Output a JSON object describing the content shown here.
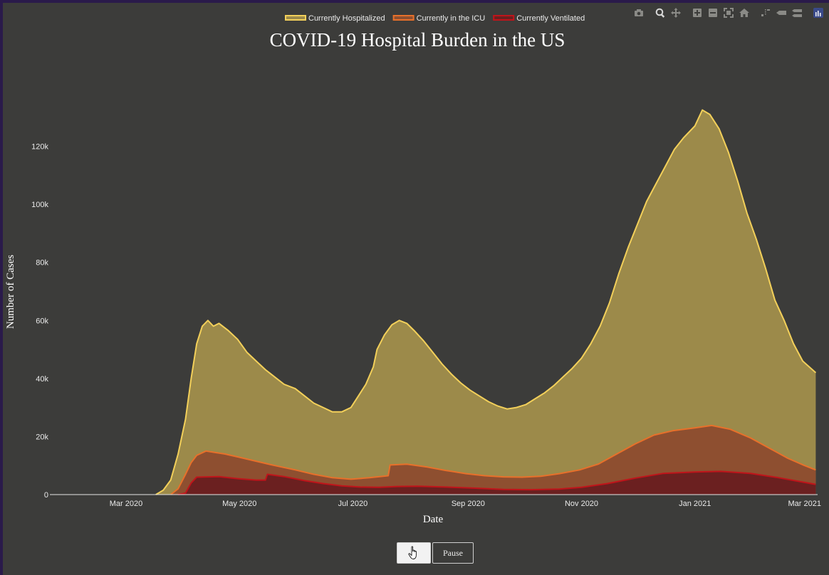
{
  "modebar": {
    "icons": [
      "camera-icon",
      "zoom-icon",
      "pan-icon",
      "zoom-in-icon",
      "zoom-out-icon",
      "autoscale-icon",
      "reset-axes-icon",
      "spike-lines-icon",
      "hover-closest-icon",
      "hover-compare-icon",
      "plotly-logo-icon"
    ]
  },
  "controls": {
    "play_label": "",
    "pause_label": "Pause"
  },
  "colors": {
    "background": "#3c3c3a",
    "hospitalized_fill": "#9c8a4a",
    "hospitalized_line": "#f3d05a",
    "icu_fill": "#8e4f30",
    "icu_line": "#e8702a",
    "ventilated_fill": "#6b2020",
    "ventilated_line": "#c0141a"
  },
  "chart_data": {
    "type": "area",
    "title": "COVID-19 Hospital Burden in the US",
    "xlabel": "Date",
    "ylabel": "Number of Cases",
    "xlim": [
      "2020-01-20",
      "2021-03-08"
    ],
    "ylim": [
      0,
      140000
    ],
    "x_ticks": [
      {
        "date": "2020-03-01",
        "label": "Mar 2020"
      },
      {
        "date": "2020-05-01",
        "label": "May 2020"
      },
      {
        "date": "2020-07-01",
        "label": "Jul 2020"
      },
      {
        "date": "2020-09-01",
        "label": "Sep 2020"
      },
      {
        "date": "2020-11-01",
        "label": "Nov 2020"
      },
      {
        "date": "2021-01-01",
        "label": "Jan 2021"
      },
      {
        "date": "2021-03-01",
        "label": "Mar 2021"
      }
    ],
    "y_ticks": [
      {
        "value": 0,
        "label": "0"
      },
      {
        "value": 20000,
        "label": "20k"
      },
      {
        "value": 40000,
        "label": "40k"
      },
      {
        "value": 60000,
        "label": "60k"
      },
      {
        "value": 80000,
        "label": "80k"
      },
      {
        "value": 100000,
        "label": "100k"
      },
      {
        "value": 120000,
        "label": "120k"
      }
    ],
    "legend_position": "top",
    "grid": false,
    "series": [
      {
        "name": "Currently Hospitalized",
        "points": [
          [
            "2020-03-17",
            0
          ],
          [
            "2020-03-21",
            1500
          ],
          [
            "2020-03-25",
            5000
          ],
          [
            "2020-03-29",
            14000
          ],
          [
            "2020-04-02",
            26000
          ],
          [
            "2020-04-05",
            40000
          ],
          [
            "2020-04-08",
            52000
          ],
          [
            "2020-04-11",
            58000
          ],
          [
            "2020-04-14",
            60000
          ],
          [
            "2020-04-17",
            58000
          ],
          [
            "2020-04-20",
            59000
          ],
          [
            "2020-04-25",
            56500
          ],
          [
            "2020-04-30",
            53500
          ],
          [
            "2020-05-05",
            49000
          ],
          [
            "2020-05-10",
            46000
          ],
          [
            "2020-05-15",
            43000
          ],
          [
            "2020-05-20",
            40500
          ],
          [
            "2020-05-25",
            38000
          ],
          [
            "2020-05-31",
            36500
          ],
          [
            "2020-06-05",
            34000
          ],
          [
            "2020-06-10",
            31500
          ],
          [
            "2020-06-15",
            30000
          ],
          [
            "2020-06-20",
            28500
          ],
          [
            "2020-06-25",
            28500
          ],
          [
            "2020-06-30",
            30000
          ],
          [
            "2020-07-04",
            34000
          ],
          [
            "2020-07-08",
            38000
          ],
          [
            "2020-07-12",
            44000
          ],
          [
            "2020-07-14",
            50000
          ],
          [
            "2020-07-18",
            55000
          ],
          [
            "2020-07-22",
            58500
          ],
          [
            "2020-07-26",
            60000
          ],
          [
            "2020-07-30",
            59000
          ],
          [
            "2020-08-03",
            56500
          ],
          [
            "2020-08-08",
            53000
          ],
          [
            "2020-08-13",
            49000
          ],
          [
            "2020-08-18",
            45000
          ],
          [
            "2020-08-23",
            41500
          ],
          [
            "2020-08-28",
            38500
          ],
          [
            "2020-09-02",
            36000
          ],
          [
            "2020-09-07",
            34000
          ],
          [
            "2020-09-12",
            32000
          ],
          [
            "2020-09-17",
            30500
          ],
          [
            "2020-09-22",
            29500
          ],
          [
            "2020-09-27",
            30000
          ],
          [
            "2020-10-02",
            31000
          ],
          [
            "2020-10-07",
            33000
          ],
          [
            "2020-10-12",
            35000
          ],
          [
            "2020-10-17",
            37500
          ],
          [
            "2020-10-22",
            40500
          ],
          [
            "2020-10-27",
            43500
          ],
          [
            "2020-11-01",
            47000
          ],
          [
            "2020-11-06",
            52000
          ],
          [
            "2020-11-11",
            58000
          ],
          [
            "2020-11-16",
            66000
          ],
          [
            "2020-11-21",
            76000
          ],
          [
            "2020-11-26",
            85000
          ],
          [
            "2020-12-01",
            93000
          ],
          [
            "2020-12-06",
            101000
          ],
          [
            "2020-12-11",
            107000
          ],
          [
            "2020-12-16",
            113000
          ],
          [
            "2020-12-21",
            119000
          ],
          [
            "2020-12-26",
            123000
          ],
          [
            "2021-01-01",
            127000
          ],
          [
            "2021-01-05",
            132500
          ],
          [
            "2021-01-09",
            131000
          ],
          [
            "2021-01-14",
            126000
          ],
          [
            "2021-01-19",
            118000
          ],
          [
            "2021-01-24",
            108000
          ],
          [
            "2021-01-29",
            97000
          ],
          [
            "2021-02-03",
            88000
          ],
          [
            "2021-02-08",
            78000
          ],
          [
            "2021-02-13",
            67000
          ],
          [
            "2021-02-18",
            60000
          ],
          [
            "2021-02-23",
            52000
          ],
          [
            "2021-02-28",
            46000
          ],
          [
            "2021-03-07",
            42000
          ]
        ]
      },
      {
        "name": "Currently in the ICU",
        "points": [
          [
            "2020-03-25",
            0
          ],
          [
            "2020-03-29",
            2000
          ],
          [
            "2020-04-02",
            7000
          ],
          [
            "2020-04-05",
            11000
          ],
          [
            "2020-04-08",
            13500
          ],
          [
            "2020-04-13",
            15000
          ],
          [
            "2020-04-18",
            14500
          ],
          [
            "2020-04-23",
            14000
          ],
          [
            "2020-04-30",
            13000
          ],
          [
            "2020-05-10",
            11500
          ],
          [
            "2020-05-20",
            10000
          ],
          [
            "2020-05-31",
            8500
          ],
          [
            "2020-06-10",
            7000
          ],
          [
            "2020-06-20",
            5800
          ],
          [
            "2020-06-30",
            5300
          ],
          [
            "2020-07-10",
            5800
          ],
          [
            "2020-07-20",
            6500
          ],
          [
            "2020-07-21",
            10200
          ],
          [
            "2020-07-30",
            10500
          ],
          [
            "2020-08-10",
            9500
          ],
          [
            "2020-08-20",
            8300
          ],
          [
            "2020-08-31",
            7200
          ],
          [
            "2020-09-10",
            6500
          ],
          [
            "2020-09-20",
            6100
          ],
          [
            "2020-09-30",
            6000
          ],
          [
            "2020-10-10",
            6300
          ],
          [
            "2020-10-20",
            7200
          ],
          [
            "2020-10-31",
            8500
          ],
          [
            "2020-11-10",
            10500
          ],
          [
            "2020-11-20",
            14000
          ],
          [
            "2020-11-30",
            17500
          ],
          [
            "2020-12-10",
            20500
          ],
          [
            "2020-12-20",
            22000
          ],
          [
            "2021-01-01",
            23000
          ],
          [
            "2021-01-10",
            23800
          ],
          [
            "2021-01-20",
            22500
          ],
          [
            "2021-01-31",
            19500
          ],
          [
            "2021-02-10",
            16000
          ],
          [
            "2021-02-20",
            12500
          ],
          [
            "2021-03-01",
            10000
          ],
          [
            "2021-03-07",
            8500
          ]
        ]
      },
      {
        "name": "Currently Ventilated",
        "points": [
          [
            "2020-03-29",
            0
          ],
          [
            "2020-04-02",
            500
          ],
          [
            "2020-04-05",
            4000
          ],
          [
            "2020-04-08",
            6000
          ],
          [
            "2020-04-20",
            6200
          ],
          [
            "2020-04-30",
            5500
          ],
          [
            "2020-05-10",
            5000
          ],
          [
            "2020-05-15",
            5000
          ],
          [
            "2020-05-16",
            7000
          ],
          [
            "2020-05-25",
            6200
          ],
          [
            "2020-06-05",
            4800
          ],
          [
            "2020-06-15",
            3800
          ],
          [
            "2020-06-25",
            3000
          ],
          [
            "2020-07-05",
            2600
          ],
          [
            "2020-07-15",
            2500
          ],
          [
            "2020-07-25",
            2800
          ],
          [
            "2020-08-05",
            2900
          ],
          [
            "2020-08-20",
            2600
          ],
          [
            "2020-09-05",
            2200
          ],
          [
            "2020-09-20",
            1800
          ],
          [
            "2020-10-05",
            1700
          ],
          [
            "2020-10-20",
            1900
          ],
          [
            "2020-11-01",
            2500
          ],
          [
            "2020-11-15",
            3800
          ],
          [
            "2020-11-30",
            5700
          ],
          [
            "2020-12-15",
            7300
          ],
          [
            "2021-01-01",
            7800
          ],
          [
            "2021-01-15",
            8000
          ],
          [
            "2021-01-31",
            7300
          ],
          [
            "2021-02-15",
            5800
          ],
          [
            "2021-03-01",
            4200
          ],
          [
            "2021-03-07",
            3500
          ]
        ]
      }
    ]
  }
}
